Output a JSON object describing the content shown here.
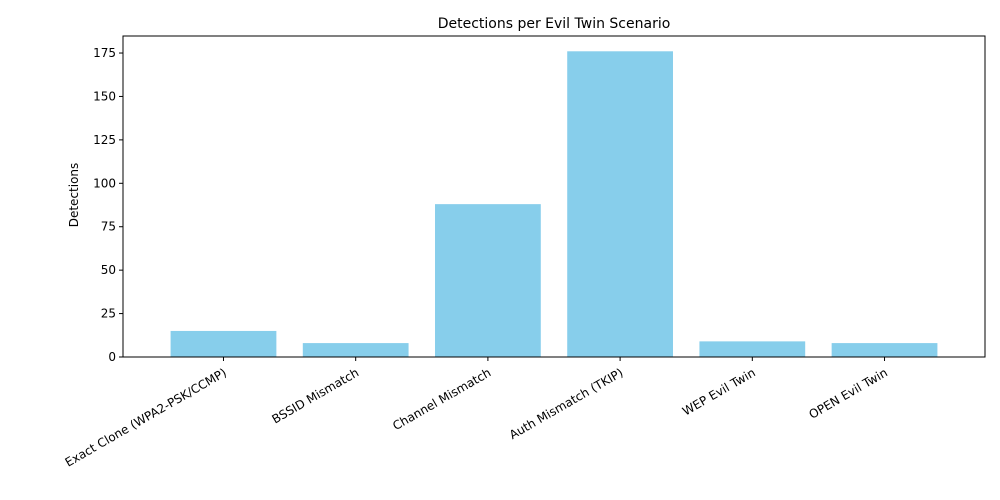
{
  "chart_data": {
    "type": "bar",
    "title": "Detections per Evil Twin Scenario",
    "xlabel": "",
    "ylabel": "Detections",
    "categories": [
      "Exact Clone (WPA2-PSK/CCMP)",
      "BSSID Mismatch",
      "Channel Mismatch",
      "Auth Mismatch (TKIP)",
      "WEP Evil Twin",
      "OPEN Evil Twin"
    ],
    "values": [
      15,
      8,
      88,
      176,
      9,
      8
    ],
    "ylim": [
      0,
      184.8
    ],
    "yticks": [
      0,
      25,
      50,
      75,
      100,
      125,
      150,
      175
    ],
    "bar_color": "#87ceeb",
    "grid": false,
    "legend": "none"
  }
}
